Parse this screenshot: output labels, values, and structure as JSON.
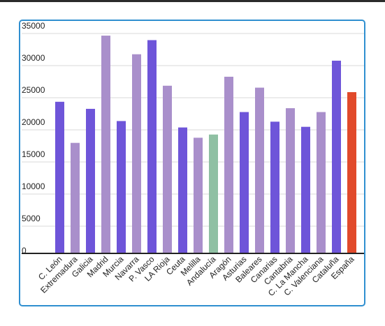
{
  "chart_data": {
    "type": "bar",
    "title": "",
    "xlabel": "",
    "ylabel": "",
    "ylim": [
      0,
      35000
    ],
    "yticks": [
      0,
      5000,
      10000,
      15000,
      20000,
      25000,
      30000,
      35000
    ],
    "grid": true,
    "categories": [
      "C. León",
      "Extremadura",
      "Galicia",
      "Madrid",
      "Murcia",
      "Navarra",
      "P. Vasco",
      "LA Rioja",
      "Ceuta",
      "Melilla",
      "Andalucía",
      "Aragón",
      "Asturias",
      "Baleares",
      "Canarias",
      "Cantabria",
      "C. La Mancha",
      "C. Valenciana",
      "Cataluña",
      "España"
    ],
    "values": [
      23500,
      17100,
      22400,
      33800,
      20500,
      30900,
      33100,
      26000,
      19500,
      17900,
      18400,
      27400,
      21900,
      25700,
      20400,
      22500,
      19600,
      21900,
      29900,
      25000
    ],
    "bar_colors": [
      "#6e55d9",
      "#a98fcb",
      "#6e55d9",
      "#a98fcb",
      "#6e55d9",
      "#a98fcb",
      "#6e55d9",
      "#a98fcb",
      "#6e55d9",
      "#a98fcb",
      "#8fc0a3",
      "#a98fcb",
      "#6e55d9",
      "#a98fcb",
      "#6e55d9",
      "#a98fcb",
      "#6e55d9",
      "#a98fcb",
      "#6e55d9",
      "#e14a2b"
    ]
  }
}
